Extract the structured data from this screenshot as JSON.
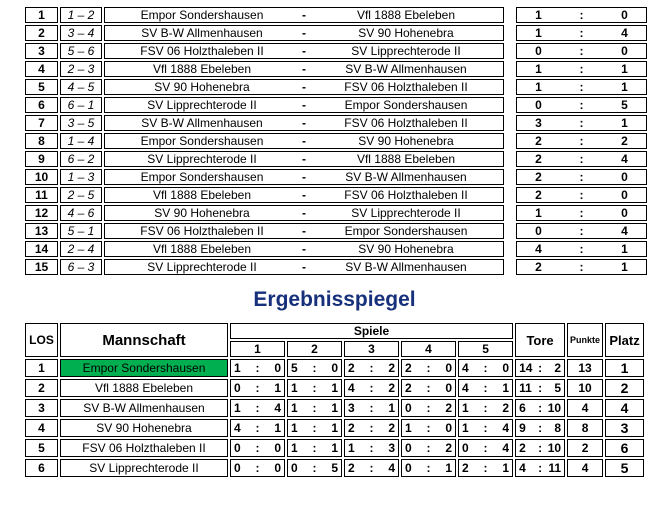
{
  "colors": {
    "title_blue": "#16307c",
    "highlight_green": "#00b050",
    "border_black": "#000000"
  },
  "symbols": {
    "dash": "-",
    "colon": ":"
  },
  "fixtures": {
    "rows": [
      {
        "nr": "1",
        "pair": "1 – 2",
        "home": "Empor Sondershausen",
        "away": "Vfl 1888 Ebeleben",
        "score": [
          "1",
          "0"
        ]
      },
      {
        "nr": "2",
        "pair": "3 – 4",
        "home": "SV B-W Allmenhausen",
        "away": "SV 90 Hohenebra",
        "score": [
          "1",
          "4"
        ]
      },
      {
        "nr": "3",
        "pair": "5 – 6",
        "home": "FSV 06 Holzthaleben II",
        "away": "SV Lipprechterode II",
        "score": [
          "0",
          "0"
        ]
      },
      {
        "nr": "4",
        "pair": "2 – 3",
        "home": "Vfl 1888 Ebeleben",
        "away": "SV B-W Allmenhausen",
        "score": [
          "1",
          "1"
        ]
      },
      {
        "nr": "5",
        "pair": "4 – 5",
        "home": "SV 90 Hohenebra",
        "away": "FSV 06 Holzthaleben II",
        "score": [
          "1",
          "1"
        ]
      },
      {
        "nr": "6",
        "pair": "6 – 1",
        "home": "SV Lipprechterode II",
        "away": "Empor Sondershausen",
        "score": [
          "0",
          "5"
        ]
      },
      {
        "nr": "7",
        "pair": "3 – 5",
        "home": "SV B-W Allmenhausen",
        "away": "FSV 06 Holzthaleben II",
        "score": [
          "3",
          "1"
        ]
      },
      {
        "nr": "8",
        "pair": "1 – 4",
        "home": "Empor Sondershausen",
        "away": "SV 90 Hohenebra",
        "score": [
          "2",
          "2"
        ]
      },
      {
        "nr": "9",
        "pair": "6 – 2",
        "home": "SV Lipprechterode II",
        "away": "Vfl 1888 Ebeleben",
        "score": [
          "2",
          "4"
        ]
      },
      {
        "nr": "10",
        "pair": "1 – 3",
        "home": "Empor Sondershausen",
        "away": "SV B-W Allmenhausen",
        "score": [
          "2",
          "0"
        ]
      },
      {
        "nr": "11",
        "pair": "2 – 5",
        "home": "Vfl 1888 Ebeleben",
        "away": "FSV 06 Holzthaleben II",
        "score": [
          "2",
          "0"
        ]
      },
      {
        "nr": "12",
        "pair": "4 – 6",
        "home": "SV 90 Hohenebra",
        "away": "SV Lipprechterode II",
        "score": [
          "1",
          "0"
        ]
      },
      {
        "nr": "13",
        "pair": "5 – 1",
        "home": "FSV 06 Holzthaleben II",
        "away": "Empor Sondershausen",
        "score": [
          "0",
          "4"
        ]
      },
      {
        "nr": "14",
        "pair": "2 – 4",
        "home": "Vfl 1888 Ebeleben",
        "away": "SV 90 Hohenebra",
        "score": [
          "4",
          "1"
        ]
      },
      {
        "nr": "15",
        "pair": "6 – 3",
        "home": "SV Lipprechterode II",
        "away": "SV B-W Allmenhausen",
        "score": [
          "2",
          "1"
        ]
      }
    ]
  },
  "title": "Ergebnisspiegel",
  "standings": {
    "headers": {
      "los": "LOS",
      "mannschaft": "Mannschaft",
      "spiele": "Spiele",
      "tore": "Tore",
      "punkte": "Punkte",
      "platz": "Platz"
    },
    "sub": [
      "1",
      "2",
      "3",
      "4",
      "5"
    ],
    "rows": [
      {
        "los": "1",
        "team": "Empor Sondershausen",
        "highlight": true,
        "spiele": [
          [
            "1",
            "0"
          ],
          [
            "5",
            "0"
          ],
          [
            "2",
            "2"
          ],
          [
            "2",
            "0"
          ],
          [
            "4",
            "0"
          ]
        ],
        "tore": [
          "14",
          "2"
        ],
        "punkte": "13",
        "platz": "1"
      },
      {
        "los": "2",
        "team": "Vfl 1888 Ebeleben",
        "highlight": false,
        "spiele": [
          [
            "0",
            "1"
          ],
          [
            "1",
            "1"
          ],
          [
            "4",
            "2"
          ],
          [
            "2",
            "0"
          ],
          [
            "4",
            "1"
          ]
        ],
        "tore": [
          "11",
          "5"
        ],
        "punkte": "10",
        "platz": "2"
      },
      {
        "los": "3",
        "team": "SV B-W Allmenhausen",
        "highlight": false,
        "spiele": [
          [
            "1",
            "4"
          ],
          [
            "1",
            "1"
          ],
          [
            "3",
            "1"
          ],
          [
            "0",
            "2"
          ],
          [
            "1",
            "2"
          ]
        ],
        "tore": [
          "6",
          "10"
        ],
        "punkte": "4",
        "platz": "4"
      },
      {
        "los": "4",
        "team": "SV 90 Hohenebra",
        "highlight": false,
        "spiele": [
          [
            "4",
            "1"
          ],
          [
            "1",
            "1"
          ],
          [
            "2",
            "2"
          ],
          [
            "1",
            "0"
          ],
          [
            "1",
            "4"
          ]
        ],
        "tore": [
          "9",
          "8"
        ],
        "punkte": "8",
        "platz": "3"
      },
      {
        "los": "5",
        "team": "FSV 06 Holzthaleben II",
        "highlight": false,
        "spiele": [
          [
            "0",
            "0"
          ],
          [
            "1",
            "1"
          ],
          [
            "1",
            "3"
          ],
          [
            "0",
            "2"
          ],
          [
            "0",
            "4"
          ]
        ],
        "tore": [
          "2",
          "10"
        ],
        "punkte": "2",
        "platz": "6"
      },
      {
        "los": "6",
        "team": "SV Lipprechterode II",
        "highlight": false,
        "spiele": [
          [
            "0",
            "0"
          ],
          [
            "0",
            "5"
          ],
          [
            "2",
            "4"
          ],
          [
            "0",
            "1"
          ],
          [
            "2",
            "1"
          ]
        ],
        "tore": [
          "4",
          "11"
        ],
        "punkte": "4",
        "platz": "5"
      }
    ]
  }
}
